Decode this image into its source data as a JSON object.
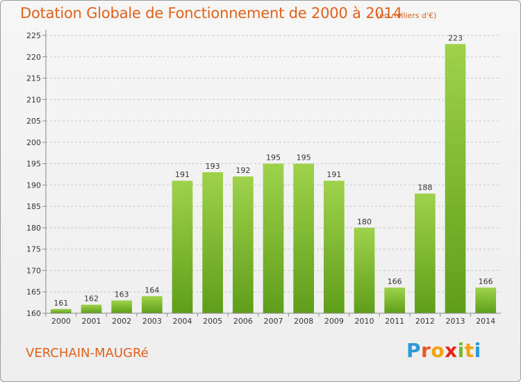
{
  "header": {
    "title": "Dotation Globale de Fonctionnement de 2000 à 2014",
    "unit": "(en milliers d'€)"
  },
  "footer": {
    "town": "VERCHAIN-MAUGRé",
    "logo": "Proxiti"
  },
  "colors": {
    "title": "#e0611a",
    "bar_top": "#9fd24b",
    "bar_bottom": "#5f9e1a",
    "logo_letters": [
      "#2a9bd6",
      "#e55a1c",
      "#f2a20c",
      "#e5261a",
      "#79b829",
      "#f2a20c",
      "#2a9bd6"
    ]
  },
  "chart_data": {
    "type": "bar",
    "categories": [
      "2000",
      "2001",
      "2002",
      "2003",
      "2004",
      "2005",
      "2006",
      "2007",
      "2008",
      "2009",
      "2010",
      "2011",
      "2012",
      "2013",
      "2014"
    ],
    "values": [
      161,
      162,
      163,
      164,
      191,
      193,
      192,
      195,
      195,
      191,
      180,
      166,
      188,
      223,
      166
    ],
    "ylim": [
      160,
      225
    ],
    "yticks": [
      160,
      165,
      170,
      175,
      180,
      185,
      190,
      195,
      200,
      205,
      210,
      215,
      220,
      225
    ],
    "grid": true,
    "show_value_labels": true
  }
}
